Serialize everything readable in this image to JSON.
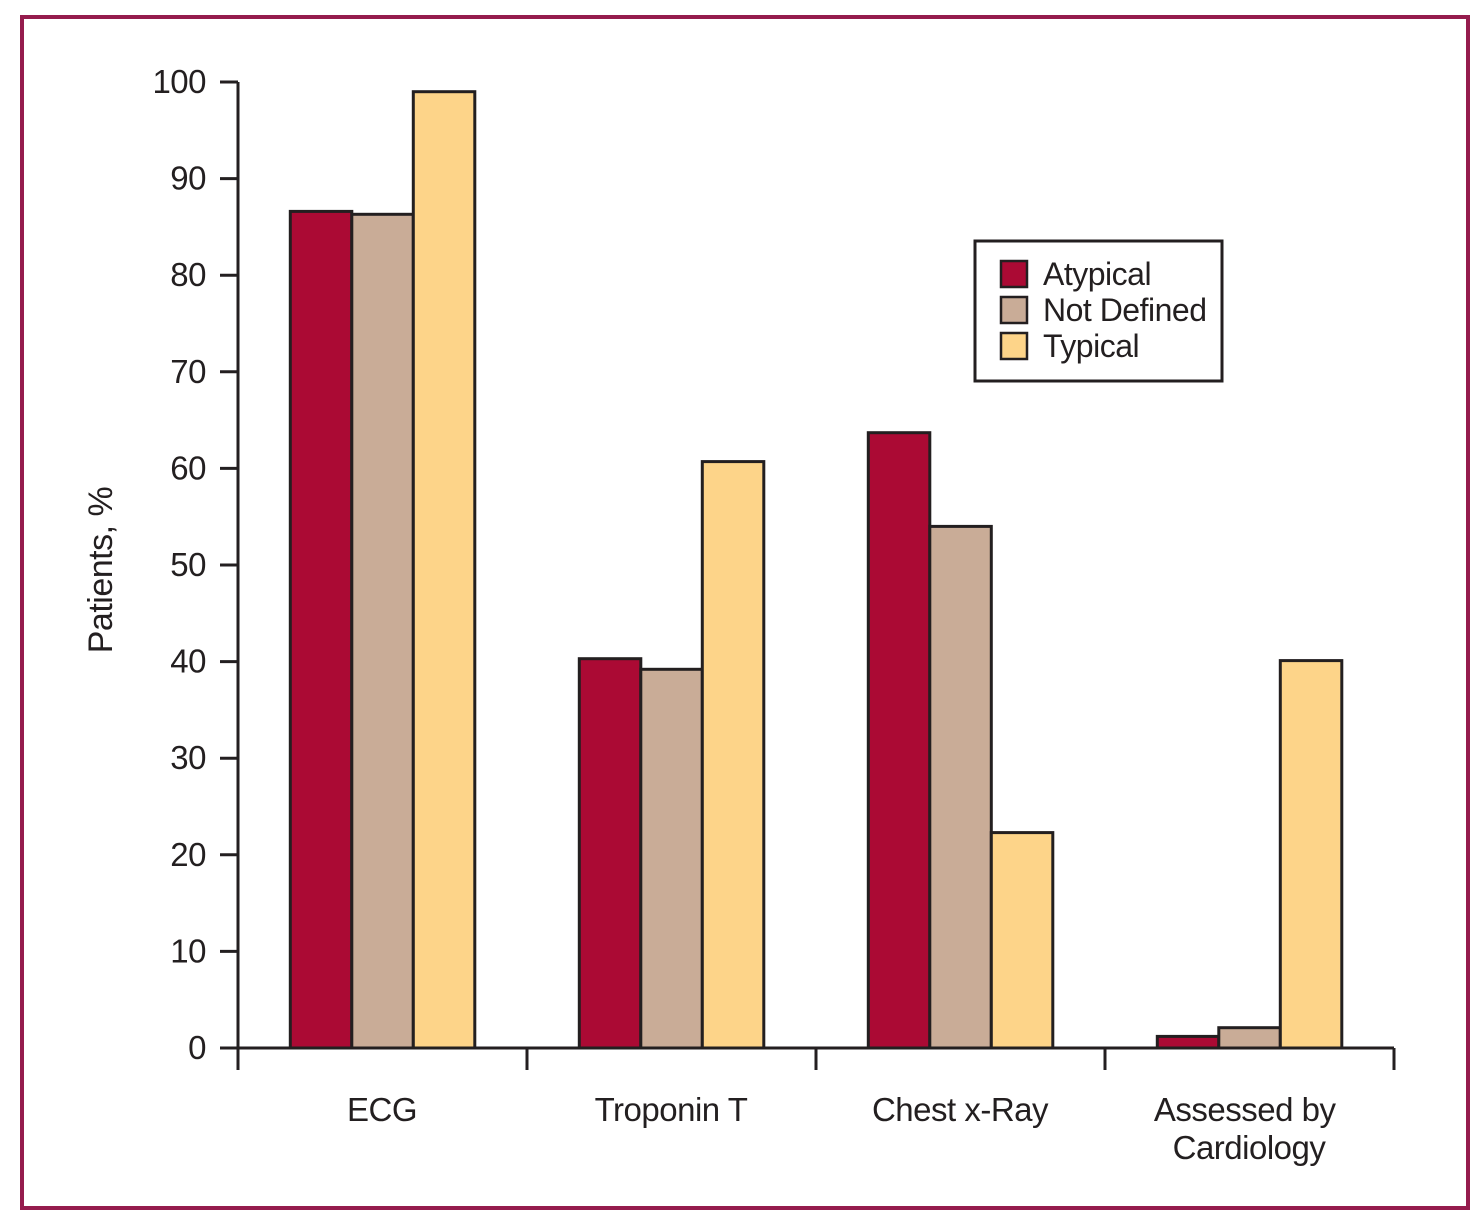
{
  "figure": {
    "border_color": "#951C4D",
    "background_color": "#FFFFFF"
  },
  "chart_data": {
    "type": "bar",
    "ylabel": "Patients, %",
    "ylim": [
      0,
      100
    ],
    "ytick_step": 10,
    "yticks": [
      0,
      10,
      20,
      30,
      40,
      50,
      60,
      70,
      80,
      90,
      100
    ],
    "grid": false,
    "legend_position": "upper-right",
    "categories": [
      [
        "ECG"
      ],
      [
        "Troponin T"
      ],
      [
        "Chest x-Ray"
      ],
      [
        "Assessed by",
        "Cardiology"
      ]
    ],
    "series": [
      {
        "name": "Atypical",
        "color": "#AB0A34",
        "values": [
          86.6,
          40.3,
          63.7,
          1.2
        ]
      },
      {
        "name": "Not Defined",
        "color": "#C9AC97",
        "values": [
          86.3,
          39.2,
          54.0,
          2.1
        ]
      },
      {
        "name": "Typical",
        "color": "#FDD489",
        "values": [
          99.0,
          60.7,
          22.3,
          40.1
        ]
      }
    ],
    "bar_outline_color": "#231F20",
    "axis_color": "#231F20",
    "text_color": "#231F20"
  }
}
